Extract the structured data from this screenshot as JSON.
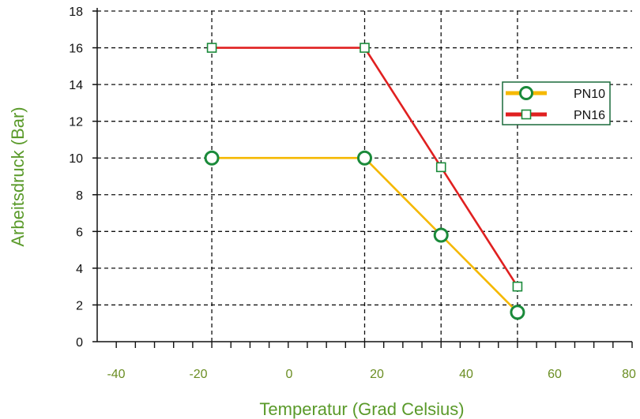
{
  "chart_data": {
    "type": "line",
    "title": "",
    "xlabel": "Temperatur (Grad Celsius)",
    "ylabel": "Arbeitsdruck (Bar)",
    "x_ticks": [
      -40,
      -20,
      0,
      20,
      40,
      60,
      80
    ],
    "y_ticks": [
      0,
      2,
      4,
      6,
      8,
      10,
      12,
      14,
      16,
      18
    ],
    "xlim": [
      -50,
      90
    ],
    "ylim": [
      0,
      18
    ],
    "grid": true,
    "legend_position": "right",
    "series": [
      {
        "name": "PN10",
        "color": "#f5b800",
        "marker_color": "#1a8a3a",
        "marker": "circle",
        "points": [
          [
            -20,
            10
          ],
          [
            20,
            10
          ],
          [
            40,
            5.8
          ],
          [
            60,
            1.6
          ]
        ]
      },
      {
        "name": "PN16",
        "color": "#e02020",
        "marker_color": "#1a8a3a",
        "marker": "square",
        "points": [
          [
            -20,
            16
          ],
          [
            20,
            16
          ],
          [
            40,
            9.5
          ],
          [
            60,
            3
          ]
        ]
      }
    ],
    "label_color": "#5a9a2a",
    "tick_label_color": "#6b8e23"
  }
}
